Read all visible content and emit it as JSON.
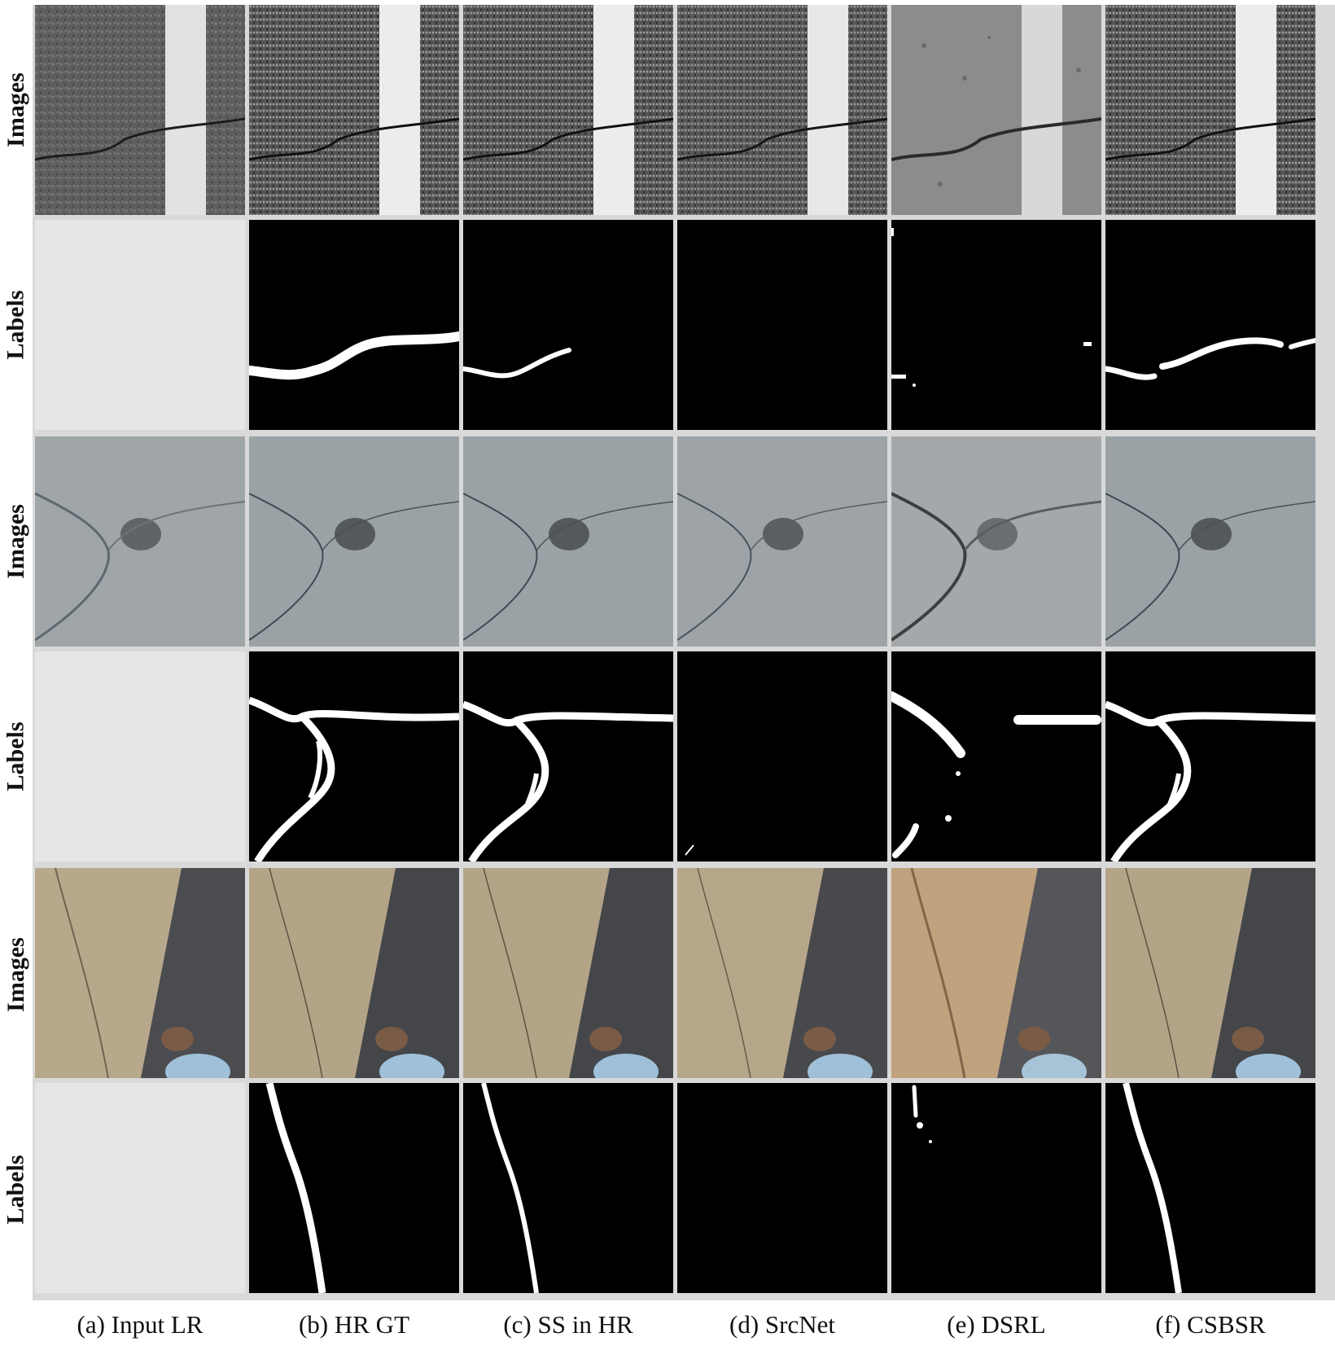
{
  "row_labels": [
    "Images",
    "Labels",
    "Images",
    "Labels",
    "Images",
    "Labels"
  ],
  "columns": [
    {
      "caption": "(a) Input LR"
    },
    {
      "caption": "(b) HR GT"
    },
    {
      "caption": "(c) SS in HR"
    },
    {
      "caption": "(d) SrcNet"
    },
    {
      "caption": "(e) DSRL"
    },
    {
      "caption": "(f) CSBSR"
    }
  ],
  "colors": {
    "label_background": "#000000",
    "label_crack": "#ffffff",
    "empty_panel": "#e6e6e6",
    "asphalt": "#5a5a5a",
    "concrete": "#9ea4a6",
    "pavement": "#b9a98c",
    "shadow": "#4a4b4f"
  }
}
